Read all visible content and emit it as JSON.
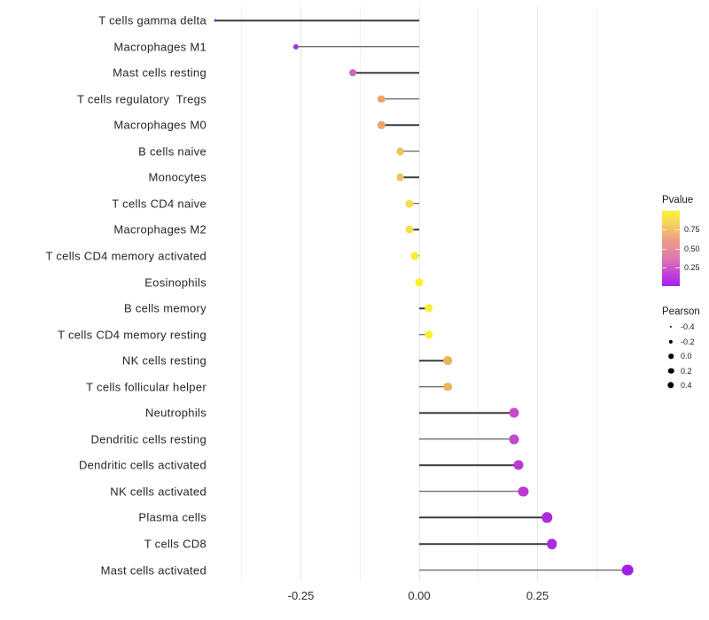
{
  "colors": {
    "background": "#ffffff",
    "gridline_major": "#e7e7e7",
    "gridline_minor": "#f0f0f0",
    "stem": "#3a3a3a",
    "axis_text": "#2e2e2e",
    "label_text": "#262626",
    "legend_dot": "#000000"
  },
  "chart_data": {
    "type": "lollipop",
    "title": "",
    "xlabel": "",
    "ylabel": "",
    "xlim": [
      -0.47,
      0.485
    ],
    "grid": "on",
    "x_ticks": [
      {
        "value": -0.25,
        "label": "-0.25"
      },
      {
        "value": 0.0,
        "label": "0.00"
      },
      {
        "value": 0.25,
        "label": "0.25"
      }
    ],
    "x_minor_gridlines": [
      -0.375,
      -0.125,
      0.125,
      0.375
    ],
    "points": [
      {
        "label": "T cells gamma delta",
        "pearson": -0.43,
        "pvalue_approx": 0.02,
        "color": "#8a25d0"
      },
      {
        "label": "Macrophages M1",
        "pearson": -0.26,
        "pvalue_approx": 0.08,
        "color": "#a335d8"
      },
      {
        "label": "Mast cells resting",
        "pearson": -0.14,
        "pvalue_approx": 0.35,
        "color": "#cd68be"
      },
      {
        "label": "T cells regulatory  Tregs",
        "pearson": -0.08,
        "pvalue_approx": 0.55,
        "color": "#eca371"
      },
      {
        "label": "Macrophages M0",
        "pearson": -0.08,
        "pvalue_approx": 0.56,
        "color": "#eca671"
      },
      {
        "label": "B cells naive",
        "pearson": -0.04,
        "pvalue_approx": 0.68,
        "color": "#efc35d"
      },
      {
        "label": "Monocytes",
        "pearson": -0.04,
        "pvalue_approx": 0.68,
        "color": "#efc45d"
      },
      {
        "label": "T cells CD4 naive",
        "pearson": -0.02,
        "pvalue_approx": 0.8,
        "color": "#f4df47"
      },
      {
        "label": "Macrophages M2",
        "pearson": -0.02,
        "pvalue_approx": 0.81,
        "color": "#f4e049"
      },
      {
        "label": "T cells CD4 memory activated",
        "pearson": -0.01,
        "pvalue_approx": 0.9,
        "color": "#f7eb33"
      },
      {
        "label": "Eosinophils",
        "pearson": 0.0,
        "pvalue_approx": 0.98,
        "color": "#faf41e"
      },
      {
        "label": "B cells memory",
        "pearson": 0.02,
        "pvalue_approx": 0.94,
        "color": "#f8f02a"
      },
      {
        "label": "T cells CD4 memory resting",
        "pearson": 0.02,
        "pvalue_approx": 0.94,
        "color": "#f8f02b"
      },
      {
        "label": "NK cells resting",
        "pearson": 0.06,
        "pvalue_approx": 0.62,
        "color": "#ecb25a"
      },
      {
        "label": "T cells follicular helper",
        "pearson": 0.06,
        "pvalue_approx": 0.63,
        "color": "#ecb45a"
      },
      {
        "label": "Neutrophils",
        "pearson": 0.2,
        "pvalue_approx": 0.28,
        "color": "#c24aca"
      },
      {
        "label": "Dendritic cells resting",
        "pearson": 0.2,
        "pvalue_approx": 0.27,
        "color": "#c149cb"
      },
      {
        "label": "Dendritic cells activated",
        "pearson": 0.21,
        "pvalue_approx": 0.22,
        "color": "#bb3ad0"
      },
      {
        "label": "NK cells activated",
        "pearson": 0.22,
        "pvalue_approx": 0.21,
        "color": "#ba39d1"
      },
      {
        "label": "Plasma cells",
        "pearson": 0.27,
        "pvalue_approx": 0.14,
        "color": "#ac2cdc"
      },
      {
        "label": "T cells CD8",
        "pearson": 0.28,
        "pvalue_approx": 0.14,
        "color": "#ac2cdc"
      },
      {
        "label": "Mast cells activated",
        "pearson": 0.44,
        "pvalue_approx": 0.03,
        "color": "#a21fe7"
      }
    ],
    "legend": {
      "position": "right",
      "pvalue": {
        "title": "Pvalue",
        "ticks": [
          {
            "value": 0.75,
            "label": "0.75"
          },
          {
            "value": 0.5,
            "label": "0.50"
          },
          {
            "value": 0.25,
            "label": "0.25"
          }
        ],
        "range": [
          0,
          1
        ],
        "gradient_stops": [
          {
            "pos": 0,
            "color": "#a81ef0"
          },
          {
            "pos": 18,
            "color": "#c646d6"
          },
          {
            "pos": 35,
            "color": "#dc73b4"
          },
          {
            "pos": 50,
            "color": "#e68e95"
          },
          {
            "pos": 62,
            "color": "#ec9f83"
          },
          {
            "pos": 75,
            "color": "#f2c16c"
          },
          {
            "pos": 90,
            "color": "#f8e14e"
          },
          {
            "pos": 100,
            "color": "#fbf32b"
          }
        ]
      },
      "pearson": {
        "title": "Pearson",
        "items": [
          {
            "value": -0.4,
            "label": "-0.4"
          },
          {
            "value": -0.2,
            "label": "-0.2"
          },
          {
            "value": 0.0,
            "label": "0.0"
          },
          {
            "value": 0.2,
            "label": "0.2"
          },
          {
            "value": 0.4,
            "label": "0.4"
          }
        ]
      }
    }
  }
}
